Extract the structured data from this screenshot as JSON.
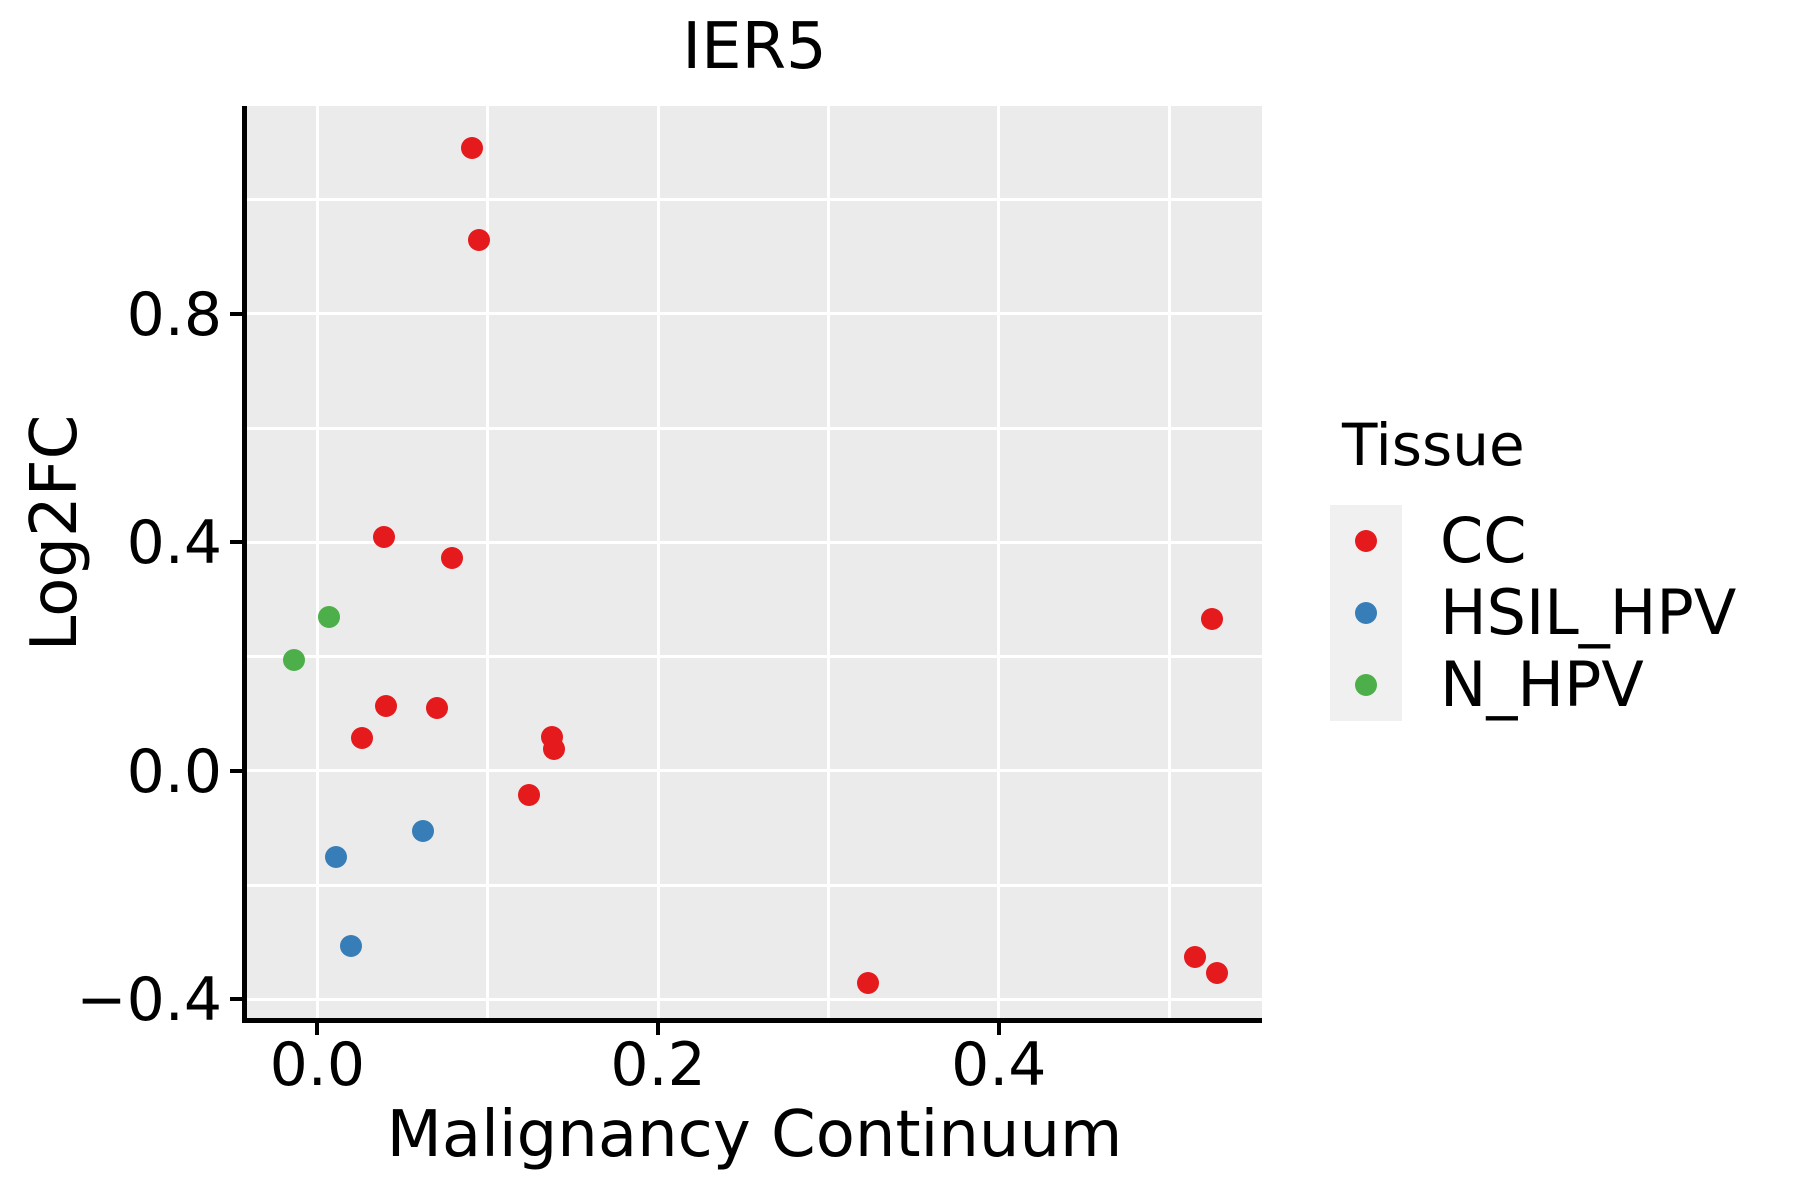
{
  "chart_data": {
    "type": "scatter",
    "title": "IER5",
    "xlabel": "Malignancy Continuum",
    "ylabel": "Log2FC",
    "xlim": [
      -0.0413,
      0.5545
    ],
    "ylim": [
      -0.436,
      1.164
    ],
    "grid": true,
    "legend_position": "right",
    "x_ticks": [
      {
        "value": 0.0,
        "label": "0.0"
      },
      {
        "value": 0.2,
        "label": "0.2"
      },
      {
        "value": 0.4,
        "label": "0.4"
      }
    ],
    "y_ticks": [
      {
        "value": 0.8,
        "label": "0.8"
      },
      {
        "value": 0.4,
        "label": "0.4"
      },
      {
        "value": 0.0,
        "label": "0.0"
      },
      {
        "value": -0.4,
        "label": "-0.4"
      }
    ],
    "x_gridlines": [
      0.0,
      0.1,
      0.2,
      0.3,
      0.4,
      0.5
    ],
    "y_gridlines": [
      1.0,
      0.8,
      0.6,
      0.4,
      0.2,
      0.0,
      -0.2,
      -0.4
    ],
    "series": [
      {
        "name": "CC",
        "color": "#E41A1C",
        "points": [
          [
            0.091,
            1.09
          ],
          [
            0.095,
            0.93
          ],
          [
            0.039,
            0.41
          ],
          [
            0.079,
            0.373
          ],
          [
            0.04,
            0.114
          ],
          [
            0.07,
            0.11
          ],
          [
            0.026,
            0.058
          ],
          [
            0.138,
            0.06
          ],
          [
            0.139,
            0.039
          ],
          [
            0.124,
            -0.042
          ],
          [
            0.323,
            -0.371
          ],
          [
            0.525,
            0.266
          ],
          [
            0.515,
            -0.326
          ],
          [
            0.528,
            -0.354
          ]
        ]
      },
      {
        "name": "HSIL_HPV",
        "color": "#377EB8",
        "points": [
          [
            0.062,
            -0.105
          ],
          [
            0.011,
            -0.151
          ],
          [
            0.02,
            -0.306
          ]
        ]
      },
      {
        "name": "N_HPV",
        "color": "#4DAF4A",
        "points": [
          [
            0.007,
            0.27
          ],
          [
            -0.014,
            0.194
          ]
        ]
      }
    ]
  },
  "legend": {
    "title": "Tissue",
    "items": [
      {
        "label": "CC",
        "color": "#E41A1C"
      },
      {
        "label": "HSIL_HPV",
        "color": "#377EB8"
      },
      {
        "label": "N_HPV",
        "color": "#4DAF4A"
      }
    ]
  },
  "style": {
    "panel_background": "#EBEBEB",
    "gridline_color": "#FFFFFF",
    "axis_color": "#000000",
    "text_color": "#000000",
    "legend_key_background": "#F0F0F0"
  }
}
